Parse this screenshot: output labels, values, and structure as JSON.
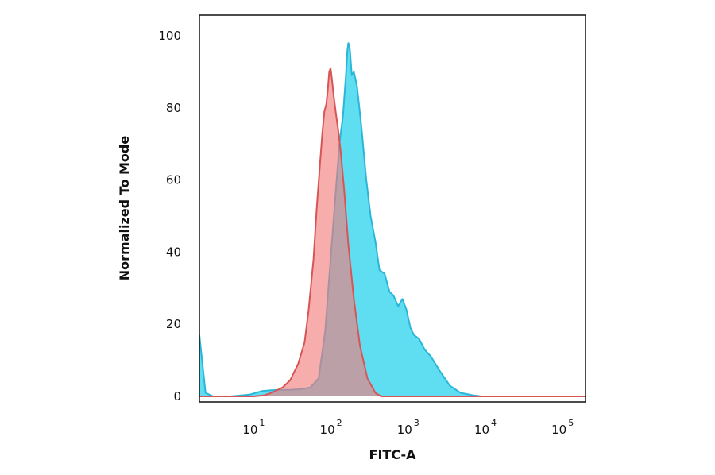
{
  "chart_data": {
    "type": "area",
    "xlabel": "FITC-A",
    "ylabel": "Normalized To Mode",
    "x_scale": "log",
    "xlim": [
      2,
      200000
    ],
    "ylim": [
      0,
      100
    ],
    "yticks": [
      {
        "value": 0,
        "label": "0"
      },
      {
        "value": 20,
        "label": "20"
      },
      {
        "value": 40,
        "label": "40"
      },
      {
        "value": 60,
        "label": "60"
      },
      {
        "value": 80,
        "label": "80"
      },
      {
        "value": 100,
        "label": "100"
      }
    ],
    "xticks": [
      {
        "value": 10,
        "base": "10",
        "exp": "1"
      },
      {
        "value": 100,
        "base": "10",
        "exp": "2"
      },
      {
        "value": 1000,
        "base": "10",
        "exp": "3"
      },
      {
        "value": 10000,
        "base": "10",
        "exp": "4"
      },
      {
        "value": 100000,
        "base": "10",
        "exp": "5"
      }
    ],
    "grid": false,
    "legend": "none",
    "series": [
      {
        "fill": "#43d8f0",
        "stroke": "#2ab6d8",
        "x": [
          2,
          2.4,
          3,
          5,
          9,
          13,
          17,
          22,
          30,
          42,
          55,
          70,
          85,
          100,
          115,
          130,
          145,
          158,
          165,
          170,
          178,
          188,
          200,
          220,
          250,
          290,
          330,
          380,
          430,
          500,
          580,
          650,
          750,
          850,
          960,
          1080,
          1200,
          1400,
          1650,
          2000,
          2600,
          3500,
          4800,
          7000,
          9000,
          20000,
          200000
        ],
        "y": [
          17,
          1,
          0,
          0,
          0.5,
          1.5,
          1.7,
          1.8,
          1.8,
          2,
          2.5,
          5,
          18,
          38,
          55,
          70,
          78,
          89,
          96,
          98,
          96,
          89,
          90,
          86,
          75,
          60,
          50,
          43,
          35,
          34,
          29,
          28,
          25,
          27,
          24,
          19,
          17,
          16,
          13,
          11,
          7,
          3,
          1,
          0.3,
          0,
          0,
          0
        ]
      },
      {
        "fill": "#f47b7b",
        "stroke": "#d85555",
        "x": [
          2,
          10,
          14,
          18,
          24,
          30,
          38,
          46,
          52,
          60,
          66,
          72,
          78,
          83,
          88,
          92,
          96,
          100,
          104,
          110,
          118,
          125,
          135,
          150,
          170,
          200,
          240,
          300,
          380,
          450,
          600,
          200000
        ],
        "y": [
          0,
          0,
          0.3,
          1.2,
          2.5,
          4.5,
          9,
          15,
          24,
          38,
          52,
          63,
          73,
          79,
          81,
          85,
          90,
          91,
          88,
          83,
          78,
          74,
          68,
          57,
          42,
          27,
          14,
          5,
          1,
          0,
          0,
          0
        ]
      }
    ]
  }
}
